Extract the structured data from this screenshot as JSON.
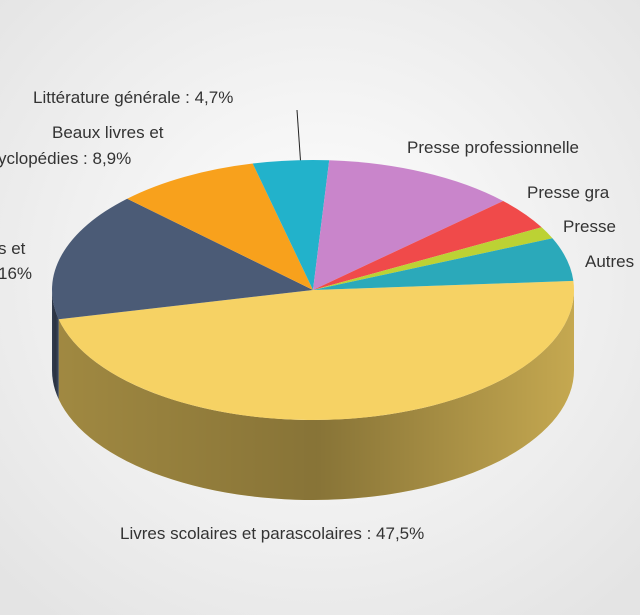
{
  "chart_data": {
    "type": "pie",
    "categories": [
      [
        "Livres scolaires et parascolaires : 47,5%"
      ],
      [
        "s et",
        "16%"
      ],
      [
        "Beaux livres et",
        "yclopédies : 8,9%"
      ],
      [
        "Littérature générale : 4,7%"
      ],
      [
        "Presse professionnelle"
      ],
      [
        "Presse gra"
      ],
      [
        "Presse"
      ],
      [
        "Autres"
      ]
    ],
    "values": [
      47.5,
      16,
      8.9,
      4.7,
      12,
      4,
      1.5,
      5.4
    ],
    "colors": [
      "#f6d264",
      "#4b5b76",
      "#f8a11c",
      "#22b2cb",
      "#c985cb",
      "#f04a4a",
      "#bcd234",
      "#2ba9ba"
    ]
  }
}
